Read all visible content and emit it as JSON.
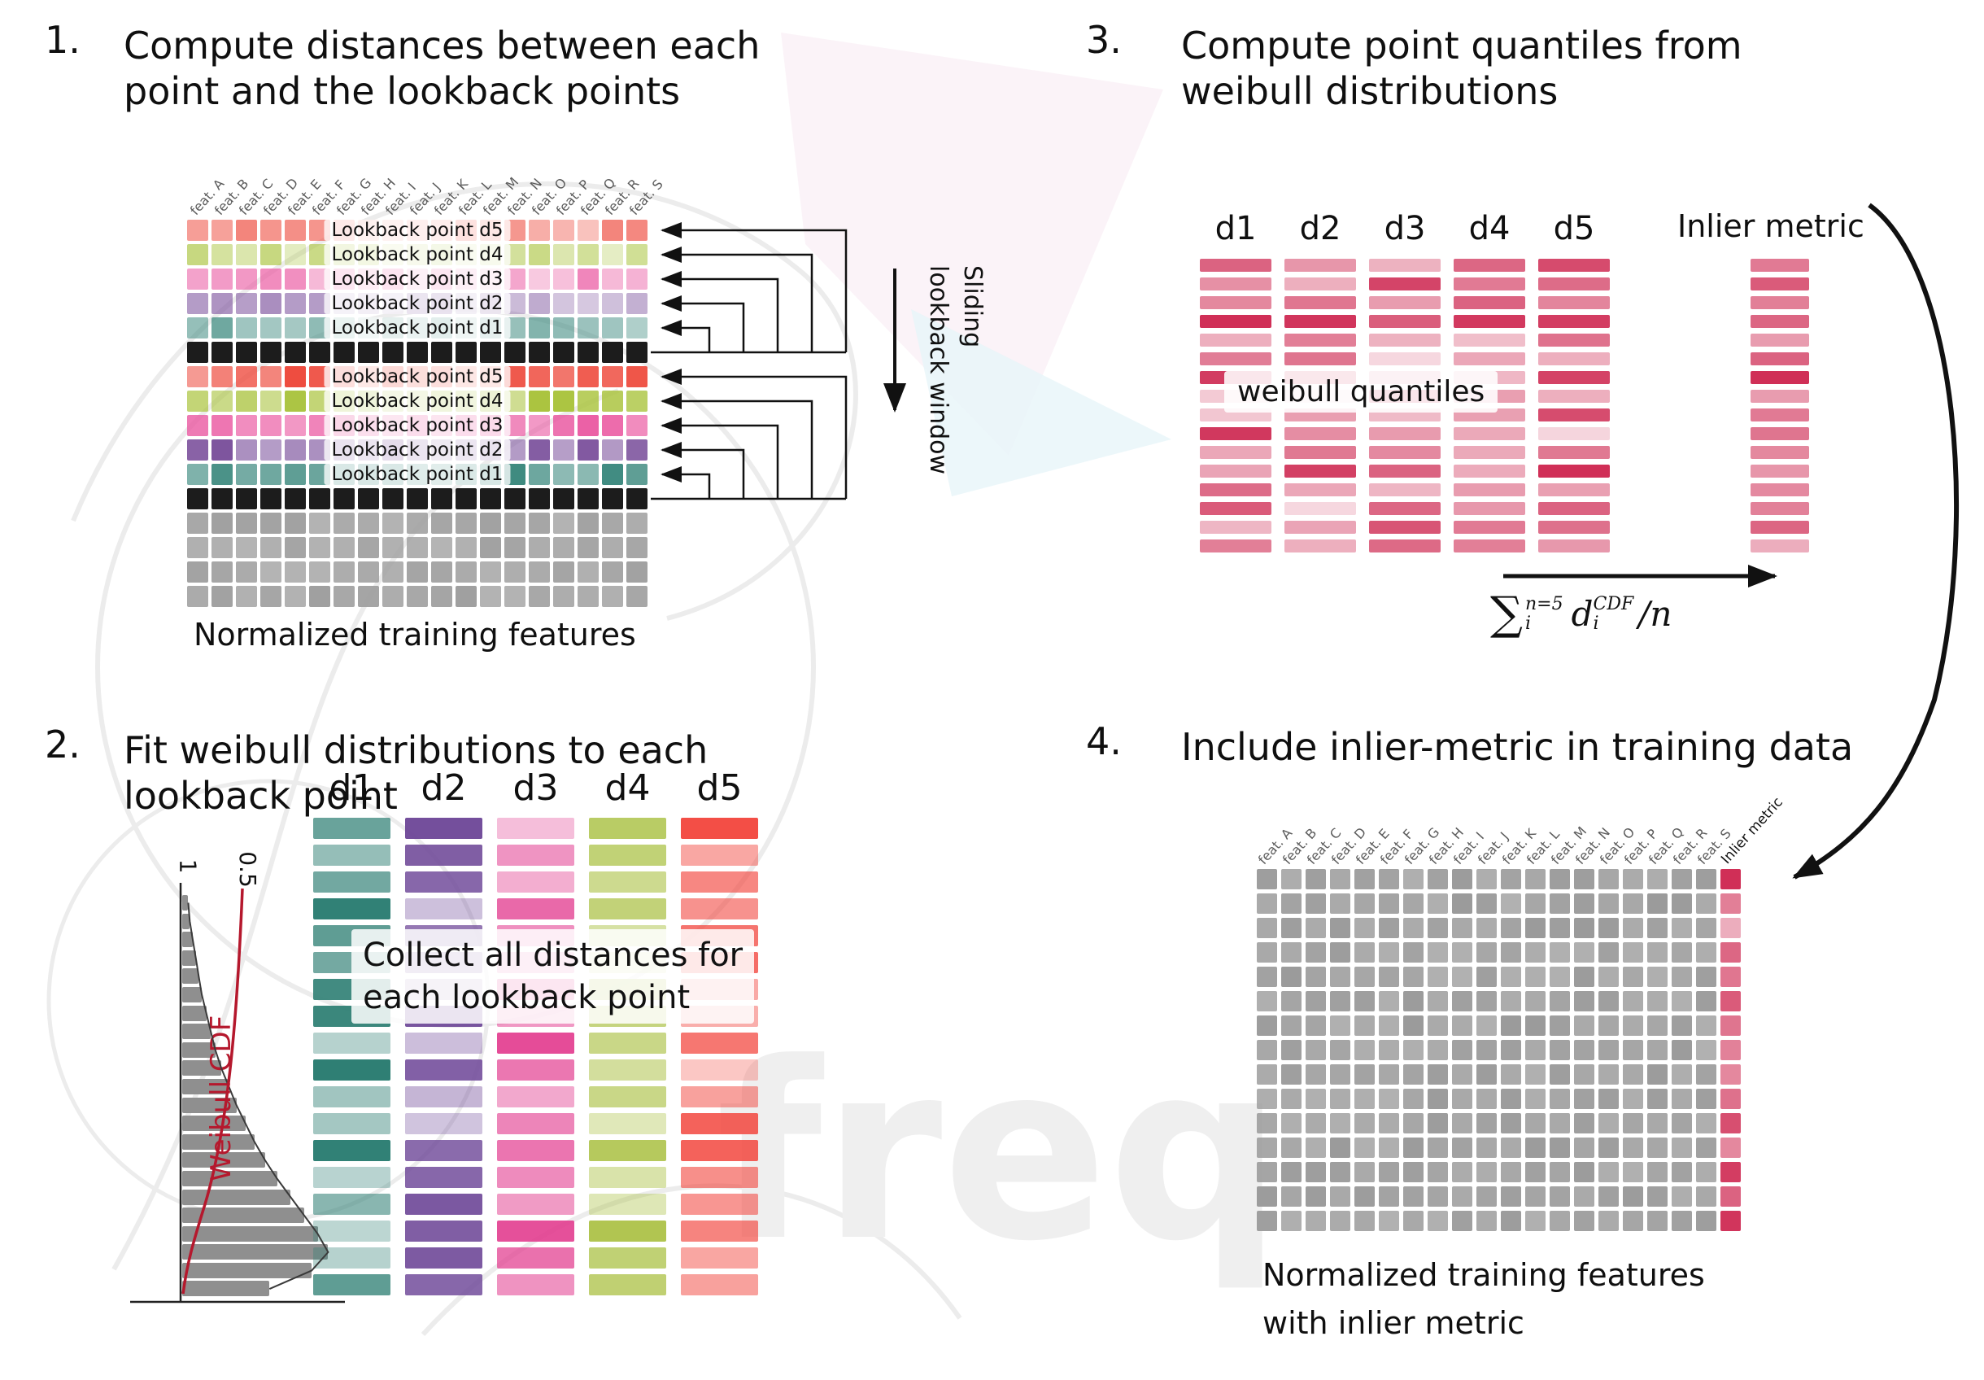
{
  "watermark": {
    "text": "freq",
    "text_color": "#efefef",
    "pink": "#f8e9f2",
    "cyan": "#e7f5f9",
    "line_color": "#ececec"
  },
  "panel1": {
    "number": "1.",
    "title": "Compute distances between each point and the lookback points",
    "caption": "Normalized training features",
    "sliding_line1": "Sliding",
    "sliding_line2": "lookback window",
    "features": [
      "feat. A",
      "feat. B",
      "feat. C",
      "feat. D",
      "feat. E",
      "feat. F",
      "feat. G",
      "feat. H",
      "feat. I",
      "feat. J",
      "feat. K",
      "feat. L",
      "feat. M",
      "feat. N",
      "feat. O",
      "feat. P",
      "feat. Q",
      "feat. R",
      "feat. S"
    ],
    "grid": {
      "cols": 19,
      "rows": [
        {
          "kind": "lookback",
          "tone": "light",
          "label": "Lookback point d5",
          "color": "#ee4b3e"
        },
        {
          "kind": "lookback",
          "tone": "light",
          "label": "Lookback point d4",
          "color": "#a9c33c"
        },
        {
          "kind": "lookback",
          "tone": "light",
          "label": "Lookback point d3",
          "color": "#e9509c"
        },
        {
          "kind": "lookback",
          "tone": "light",
          "label": "Lookback point d2",
          "color": "#7a4f9b"
        },
        {
          "kind": "lookback",
          "tone": "light",
          "label": "Lookback point d1",
          "color": "#37867b"
        },
        {
          "kind": "current",
          "color": "#1c1c1c"
        },
        {
          "kind": "lookback",
          "tone": "bright",
          "label": "Lookback point d5",
          "color": "#ee4b3e"
        },
        {
          "kind": "lookback",
          "tone": "bright",
          "label": "Lookback point d4",
          "color": "#a9c33c"
        },
        {
          "kind": "lookback",
          "tone": "bright",
          "label": "Lookback point d3",
          "color": "#e9509c"
        },
        {
          "kind": "lookback",
          "tone": "bright",
          "label": "Lookback point d2",
          "color": "#7a4f9b"
        },
        {
          "kind": "lookback",
          "tone": "bright",
          "label": "Lookback point d1",
          "color": "#37867b"
        },
        {
          "kind": "current",
          "color": "#1c1c1c"
        },
        {
          "kind": "plain",
          "color": "#9f9f9f"
        },
        {
          "kind": "plain",
          "color": "#9f9f9f"
        },
        {
          "kind": "plain",
          "color": "#9f9f9f"
        },
        {
          "kind": "plain",
          "color": "#9f9f9f"
        }
      ]
    }
  },
  "panel2": {
    "number": "2.",
    "title": "Fit weibull distributions to each lookback point",
    "overlay_line1": "Collect all distances for",
    "overlay_line2": "each lookback point",
    "hist": {
      "tick_1": "1",
      "tick_05": "0.5",
      "curve_label": "Weibull CDF",
      "curve_color": "#b5182d",
      "bar_color": "#8f8f8f",
      "values": [
        0.04,
        0.05,
        0.07,
        0.09,
        0.11,
        0.13,
        0.16,
        0.19,
        0.22,
        0.26,
        0.31,
        0.36,
        0.42,
        0.48,
        0.55,
        0.63,
        0.72,
        0.81,
        0.9,
        0.97,
        0.86,
        0.58
      ]
    },
    "bars_per_column": 18,
    "columns": [
      {
        "label": "d1",
        "color": "#2f7f74"
      },
      {
        "label": "d2",
        "color": "#6d4697"
      },
      {
        "label": "d3",
        "color": "#e23a8e"
      },
      {
        "label": "d4",
        "color": "#a8bf3e"
      },
      {
        "label": "d5",
        "color": "#f2443c"
      }
    ]
  },
  "panel3": {
    "number": "3.",
    "title": "Compute point quantiles from weibull distributions",
    "overlay": "weibull quantiles",
    "inlier_label": "Inlier metric",
    "bar_color": "#cf2d55",
    "bars_per_column": 16,
    "columns": [
      "d1",
      "d2",
      "d3",
      "d4",
      "d5"
    ],
    "formula": {
      "sigma": "∑",
      "sup": "n=5",
      "sub": "i",
      "var": "d",
      "var_sup": "CDF",
      "var_sub": "i",
      "tail": "/n"
    }
  },
  "panel4": {
    "number": "4.",
    "title": "Include inlier-metric in training data",
    "caption_line1": "Normalized training features",
    "caption_line2": "with inlier metric",
    "inlier_label": "Inlier metric",
    "features": [
      "feat. A",
      "feat. B",
      "feat. C",
      "feat. D",
      "feat. E",
      "feat. F",
      "feat. G",
      "feat. H",
      "feat. I",
      "feat. J",
      "feat. K",
      "feat. L",
      "feat. M",
      "feat. N",
      "feat. O",
      "feat. P",
      "feat. Q",
      "feat. R",
      "feat. S"
    ],
    "grid": {
      "cols": 20,
      "rows": 15,
      "base_color": "#9b9b9b",
      "inlier_color": "#cf2d55"
    }
  }
}
